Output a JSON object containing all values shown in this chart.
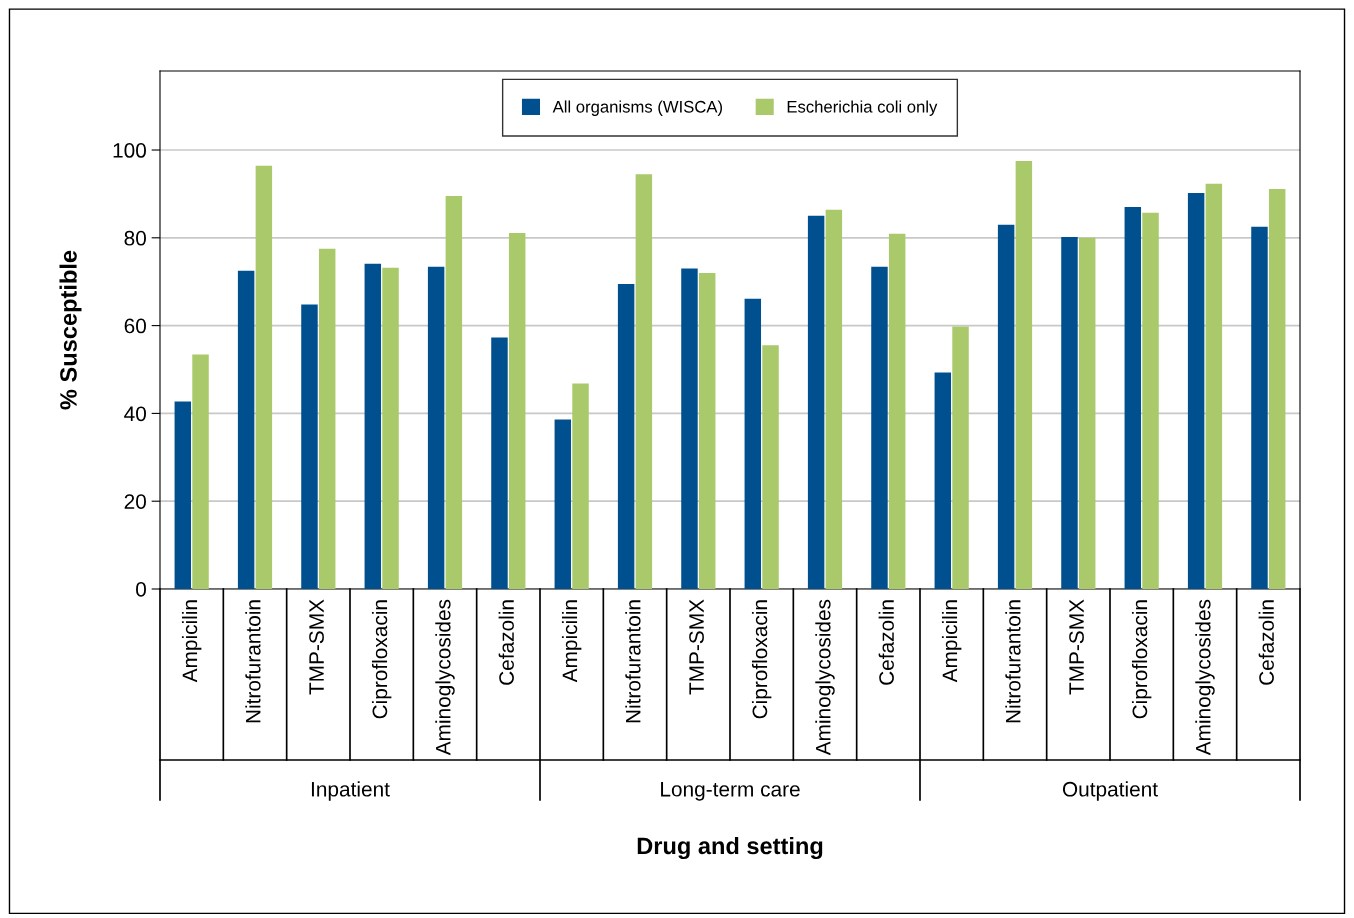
{
  "chart_data": {
    "type": "bar",
    "xlabel": "Drug and setting",
    "ylabel": "% Susceptible",
    "categories": [
      "Ampicilin",
      "Nitrofurantoin",
      "TMP-SMX",
      "Ciprofloxacin",
      "Aminoglycosides",
      "Cefazolin",
      "Ampicilin",
      "Nitrofurantoin",
      "TMP-SMX",
      "Ciprofloxacin",
      "Aminoglycosides",
      "Cefazolin",
      "Ampicilin",
      "Nitrofurantoin",
      "TMP-SMX",
      "Ciprofloxacin",
      "Aminoglycosides",
      "Cefazolin"
    ],
    "series": [
      {
        "name": "All organisms (WISCA)",
        "color": "#00508f",
        "values": [
          42.7,
          72.5,
          64.8,
          74.1,
          73.4,
          57.3,
          38.6,
          69.5,
          73.0,
          66.1,
          85.0,
          73.4,
          49.3,
          83.0,
          80.2,
          87.0,
          90.2,
          82.5
        ]
      },
      {
        "name": "Escherichia coli only",
        "color": "#a9c96a",
        "values": [
          53.4,
          96.4,
          77.5,
          73.2,
          89.5,
          81.1,
          46.8,
          94.5,
          72.0,
          55.5,
          86.4,
          80.9,
          59.8,
          97.5,
          80.0,
          85.7,
          92.3,
          91.1
        ]
      }
    ],
    "annotations": [
      "Inpatient",
      "Long-term care",
      "Outpatient"
    ],
    "ylim": [
      0,
      118
    ],
    "yticks": [
      0,
      20,
      40,
      60,
      80,
      100
    ],
    "grid": "y",
    "legend": "top"
  }
}
